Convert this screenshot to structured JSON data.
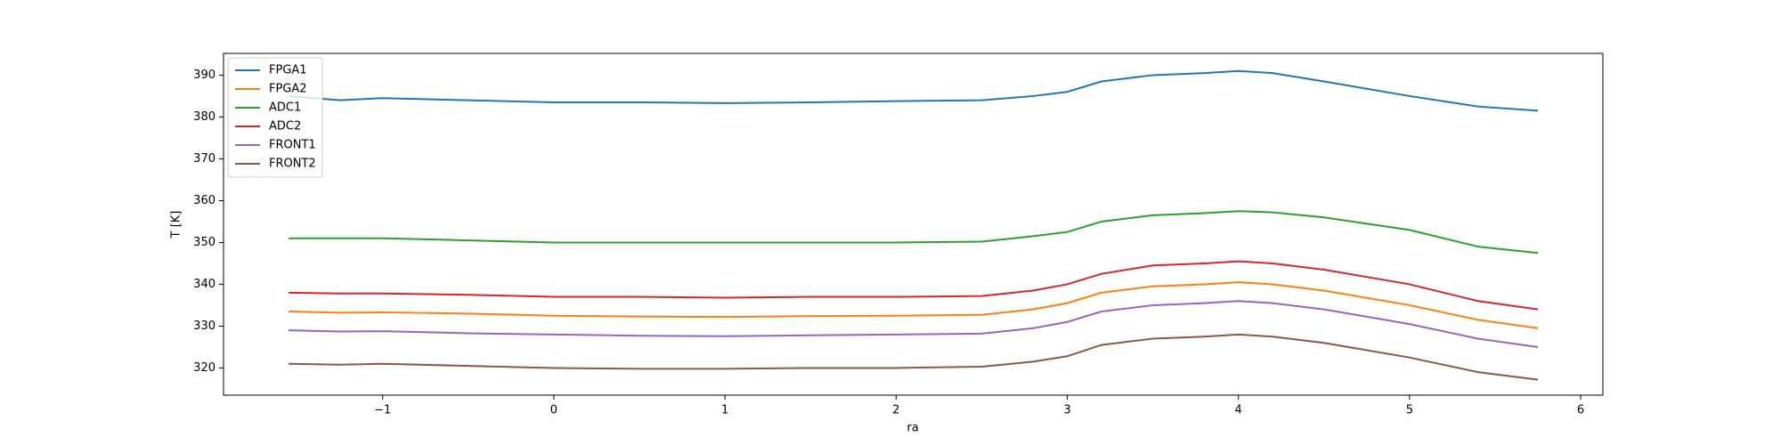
{
  "chart_data": {
    "type": "line",
    "xlabel": "ra",
    "ylabel": "T [K]",
    "x": [
      -1.55,
      -1.25,
      -1.0,
      -0.5,
      0,
      0.5,
      1.0,
      1.5,
      2.0,
      2.5,
      2.8,
      3.0,
      3.2,
      3.5,
      3.8,
      4.0,
      4.2,
      4.5,
      5.0,
      5.4,
      5.75
    ],
    "series": [
      {
        "name": "FPGA1",
        "color": "#1f77b4",
        "values": [
          385,
          384,
          384.5,
          384,
          383.5,
          383.5,
          383.3,
          383.5,
          383.8,
          384,
          385,
          386,
          388.5,
          390,
          390.5,
          391,
          390.5,
          388.5,
          385,
          382.5,
          381.5
        ]
      },
      {
        "name": "FPGA2",
        "color": "#ff7f0e",
        "values": [
          333.5,
          333.2,
          333.3,
          333,
          332.5,
          332.3,
          332.2,
          332.4,
          332.5,
          332.7,
          334,
          335.5,
          338,
          339.5,
          340,
          340.5,
          340,
          338.5,
          335,
          331.5,
          329.5
        ]
      },
      {
        "name": "ADC1",
        "color": "#2ca02c",
        "values": [
          351,
          351,
          351,
          350.5,
          350,
          350,
          350,
          350,
          350,
          350.2,
          351.5,
          352.5,
          355,
          356.5,
          357,
          357.5,
          357.2,
          356,
          353,
          349,
          347.5
        ]
      },
      {
        "name": "ADC2",
        "color": "#d62728",
        "values": [
          338,
          337.8,
          337.8,
          337.5,
          337,
          337,
          336.8,
          337,
          337,
          337.2,
          338.5,
          340,
          342.5,
          344.5,
          345,
          345.5,
          345,
          343.5,
          340,
          336,
          334
        ]
      },
      {
        "name": "FRONT1",
        "color": "#9467bd",
        "values": [
          329,
          328.7,
          328.8,
          328.3,
          328,
          327.7,
          327.6,
          327.8,
          328,
          328.2,
          329.5,
          331,
          333.5,
          335,
          335.5,
          336,
          335.5,
          334,
          330.5,
          327,
          325
        ]
      },
      {
        "name": "FRONT2",
        "color": "#8c564b",
        "values": [
          321,
          320.8,
          321,
          320.5,
          320,
          319.8,
          319.8,
          320,
          320,
          320.3,
          321.5,
          322.8,
          325.5,
          327,
          327.5,
          328,
          327.5,
          326,
          322.5,
          319,
          317.2
        ]
      }
    ],
    "xlim": [
      -1.93,
      6.13
    ],
    "xticks": [
      {
        "value": -1,
        "label": "−1"
      },
      0,
      1,
      2,
      3,
      4,
      5,
      6
    ],
    "ylim": [
      313.5,
      395.2
    ],
    "yticks": [
      320,
      330,
      340,
      350,
      360,
      370,
      380,
      390
    ],
    "legend": "upper left"
  }
}
